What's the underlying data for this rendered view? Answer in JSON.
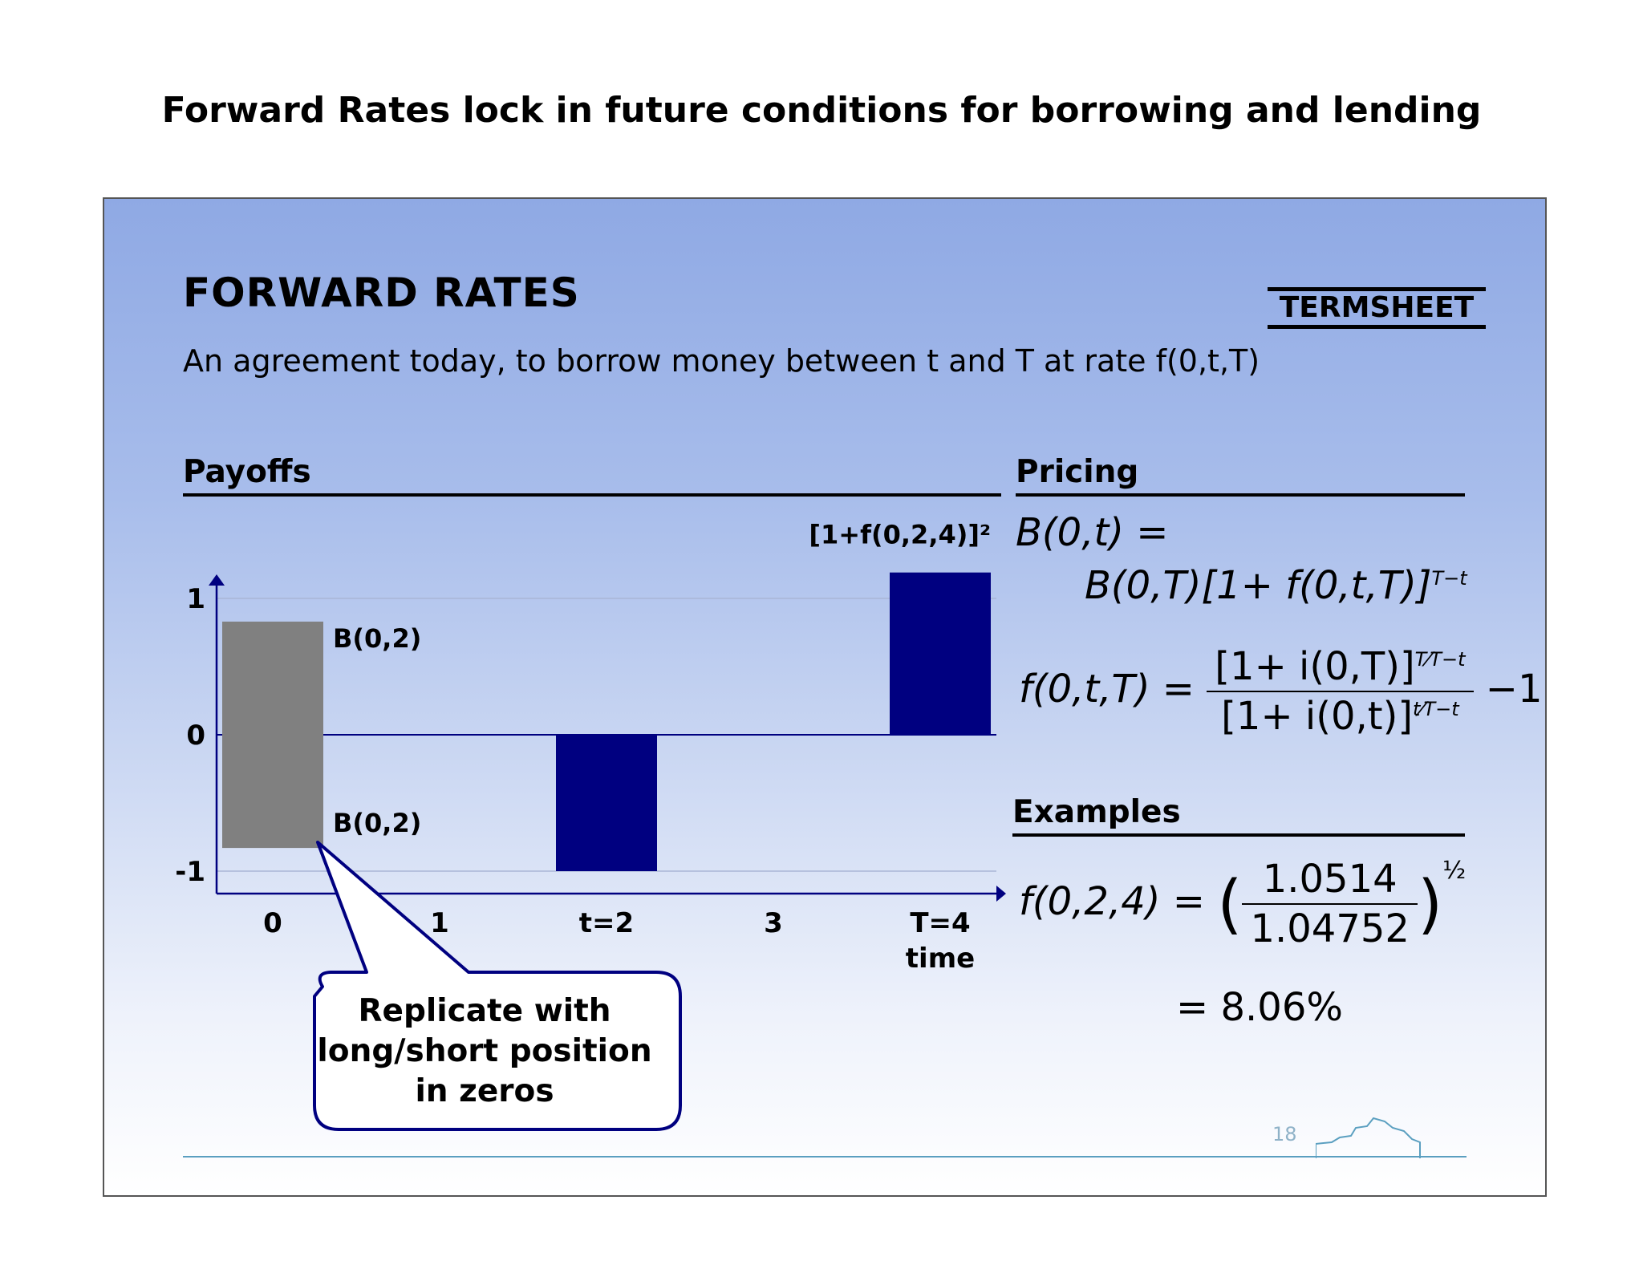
{
  "page_title": "Forward Rates lock in future conditions for borrowing and lending",
  "slide": {
    "title": "FORWARD RATES",
    "badge": "TERMSHEET",
    "subtitle": "An agreement today, to borrow money between t and T at rate f(0,t,T)",
    "payoffs_heading": "Payoffs",
    "pricing_heading": "Pricing",
    "examples_heading": "Examples",
    "callout": [
      "Replicate with",
      "long/short position",
      "in zeros"
    ],
    "page_number": "18"
  },
  "pricing": {
    "line1": "B(0,t) =",
    "line2": "B(0,T)[1+ f(0,t,T)]",
    "line2_exp": "T−t",
    "formula_lhs": "f(0,t,T) =",
    "formula_num": "[1+ i(0,T)]",
    "formula_num_exp": "T⁄T−t",
    "formula_den": "[1+ i(0,t)]",
    "formula_den_exp": "t⁄T−t",
    "formula_tail": "−1"
  },
  "examples": {
    "lhs": "f(0,2,4) =",
    "num": "1.0514",
    "den": "1.04752",
    "exp": "½",
    "result": "= 8.06%"
  },
  "chart_data": {
    "type": "bar",
    "x_ticks": [
      "0",
      "1",
      "t=2",
      "3",
      "T=4"
    ],
    "x_axis_title": "time",
    "y_ticks": [
      {
        "label": "1",
        "value": 1
      },
      {
        "label": "0",
        "value": 0
      },
      {
        "label": "-1",
        "value": -1
      }
    ],
    "ylim": [
      -1.25,
      1.25
    ],
    "grid": true,
    "bars": [
      {
        "x": 0,
        "from": -0.83,
        "to": 0.83,
        "color": "#808080",
        "labels": [
          "B(0,2)",
          "B(0,2)"
        ]
      },
      {
        "x": 2,
        "from": -1.0,
        "to": 0.0,
        "color": "#000080",
        "labels": []
      },
      {
        "x": 4,
        "from": 0.0,
        "to": 1.19,
        "color": "#000080",
        "labels": [
          "[1+f(0,2,4)]²"
        ]
      }
    ]
  }
}
